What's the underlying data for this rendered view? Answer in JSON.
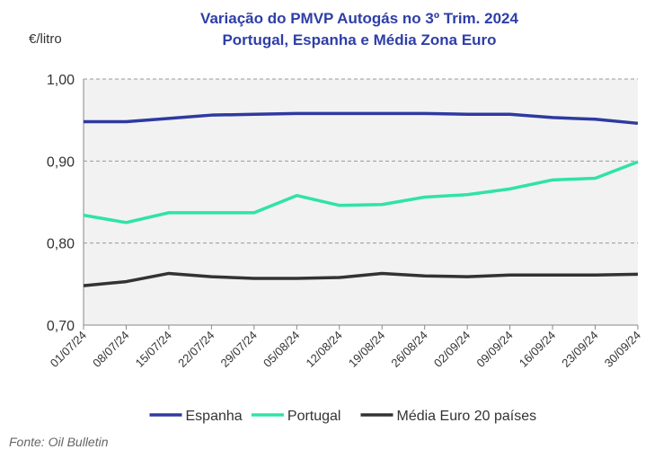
{
  "chart_data": {
    "type": "line",
    "title": "Variação do PMVP Autogás no 3º Trim. 2024",
    "subtitle": "Portugal, Espanha e Média Zona Euro",
    "y_label": "€/litro",
    "source": "Fonte: Oil Bulletin",
    "categories": [
      "01/07/24",
      "08/07/24",
      "15/07/24",
      "22/07/24",
      "29/07/24",
      "05/08/24",
      "12/08/24",
      "19/08/24",
      "26/08/24",
      "02/09/24",
      "09/09/24",
      "16/09/24",
      "23/09/24",
      "30/09/24"
    ],
    "series": [
      {
        "name": "Espanha",
        "color": "#2e3aa0",
        "values": [
          0.948,
          0.948,
          0.952,
          0.956,
          0.957,
          0.958,
          0.958,
          0.958,
          0.958,
          0.957,
          0.957,
          0.953,
          0.951,
          0.946
        ]
      },
      {
        "name": "Portugal",
        "color": "#2fe3a6",
        "values": [
          0.834,
          0.825,
          0.837,
          0.837,
          0.837,
          0.858,
          0.846,
          0.847,
          0.856,
          0.859,
          0.866,
          0.877,
          0.879,
          0.899
        ]
      },
      {
        "name": "Média Euro 20 países",
        "color": "#333333",
        "values": [
          0.748,
          0.753,
          0.763,
          0.759,
          0.757,
          0.757,
          0.758,
          0.763,
          0.76,
          0.759,
          0.761,
          0.761,
          0.761,
          0.762
        ]
      }
    ],
    "ylim": [
      0.7,
      1.0
    ],
    "yticks": [
      {
        "value": 0.7,
        "label": "0,70"
      },
      {
        "value": 0.8,
        "label": "0,80"
      },
      {
        "value": 0.9,
        "label": "0,90"
      },
      {
        "value": 1.0,
        "label": "1,00"
      }
    ],
    "grid": true,
    "legend": "bottom"
  }
}
